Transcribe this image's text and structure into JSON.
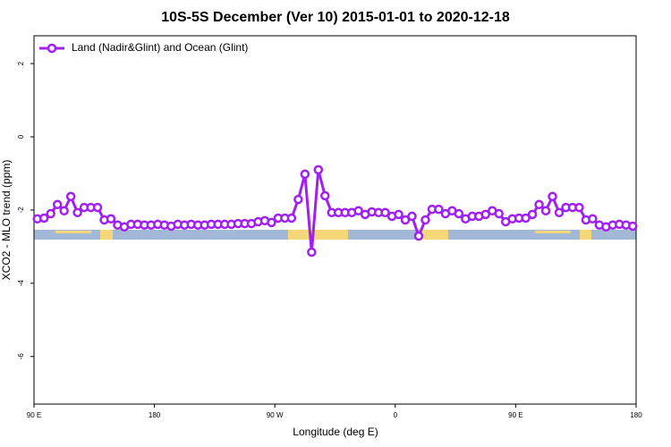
{
  "chart_data": {
    "type": "line",
    "title": "10S-5S December (Ver 10)   2015-01-01 to 2020-12-18",
    "x_label": "Longitude (deg E)",
    "y_label": "XCO2 - MLO trend (ppm)",
    "x": [
      92.5,
      97.5,
      102.5,
      107.5,
      112.5,
      117.5,
      122.5,
      127.5,
      132.5,
      137.5,
      142.5,
      147.5,
      152.5,
      157.5,
      162.5,
      167.5,
      172.5,
      177.5,
      182.5,
      187.5,
      192.5,
      197.5,
      202.5,
      207.5,
      212.5,
      217.5,
      222.5,
      227.5,
      232.5,
      237.5,
      242.5,
      247.5,
      252.5,
      257.5,
      262.5,
      267.5,
      272.5,
      277.5,
      282.5,
      287.5,
      292.5,
      297.5,
      302.5,
      307.5,
      312.5,
      317.5,
      322.5,
      327.5,
      332.5,
      337.5,
      342.5,
      347.5,
      352.5,
      357.5,
      362.5,
      367.5,
      372.5,
      377.5,
      382.5,
      387.5,
      392.5,
      397.5,
      402.5,
      407.5,
      412.5,
      417.5,
      422.5,
      427.5,
      432.5,
      437.5,
      442.5,
      447.5,
      452.5,
      457.5,
      462.5,
      467.5,
      472.5,
      477.5,
      482.5,
      487.5,
      492.5,
      497.5,
      502.5,
      507.5,
      512.5,
      517.5,
      522.5,
      527.5,
      532.5,
      537.5
    ],
    "series": [
      {
        "name": "Land (Nadir&Glint) and Ocean (Glint)",
        "color": "#a020f0",
        "values": [
          -2.24,
          -2.22,
          -2.1,
          -1.85,
          -2.02,
          -1.63,
          -2.07,
          -1.93,
          -1.93,
          -1.93,
          -2.27,
          -2.24,
          -2.41,
          -2.46,
          -2.39,
          -2.39,
          -2.41,
          -2.41,
          -2.39,
          -2.41,
          -2.44,
          -2.39,
          -2.41,
          -2.39,
          -2.41,
          -2.41,
          -2.39,
          -2.39,
          -2.39,
          -2.39,
          -2.37,
          -2.37,
          -2.37,
          -2.32,
          -2.29,
          -2.34,
          -2.22,
          -2.22,
          -2.22,
          -1.71,
          -1.02,
          -3.15,
          -0.9,
          -1.61,
          -2.07,
          -2.07,
          -2.07,
          -2.07,
          -2.02,
          -2.12,
          -2.05,
          -2.07,
          -2.07,
          -2.17,
          -2.12,
          -2.27,
          -2.17,
          -2.71,
          -2.27,
          -1.98,
          -1.98,
          -2.1,
          -2.02,
          -2.1,
          -2.24,
          -2.17,
          -2.17,
          -2.12,
          -2.02,
          -2.1,
          -2.32,
          -2.24,
          -2.22,
          -2.22,
          -2.12,
          -1.85,
          -2.02,
          -1.63,
          -2.07,
          -1.93,
          -1.93,
          -1.93,
          -2.27,
          -2.24,
          -2.41,
          -2.46,
          -2.41,
          -2.39,
          -2.41,
          -2.44
        ]
      }
    ],
    "xlim": [
      90,
      540
    ],
    "xticks": [
      {
        "value": 90,
        "label": "90 E"
      },
      180,
      {
        "value": 270,
        "label": "90 W"
      },
      {
        "value": 360,
        "label": "0"
      },
      {
        "value": 450,
        "label": "90 E"
      },
      {
        "value": 540,
        "label": "180"
      }
    ],
    "ylim": [
      -7.3,
      2.76
    ],
    "yticks": [
      2,
      0,
      -2,
      -4,
      -6
    ],
    "legend": "top-left"
  }
}
